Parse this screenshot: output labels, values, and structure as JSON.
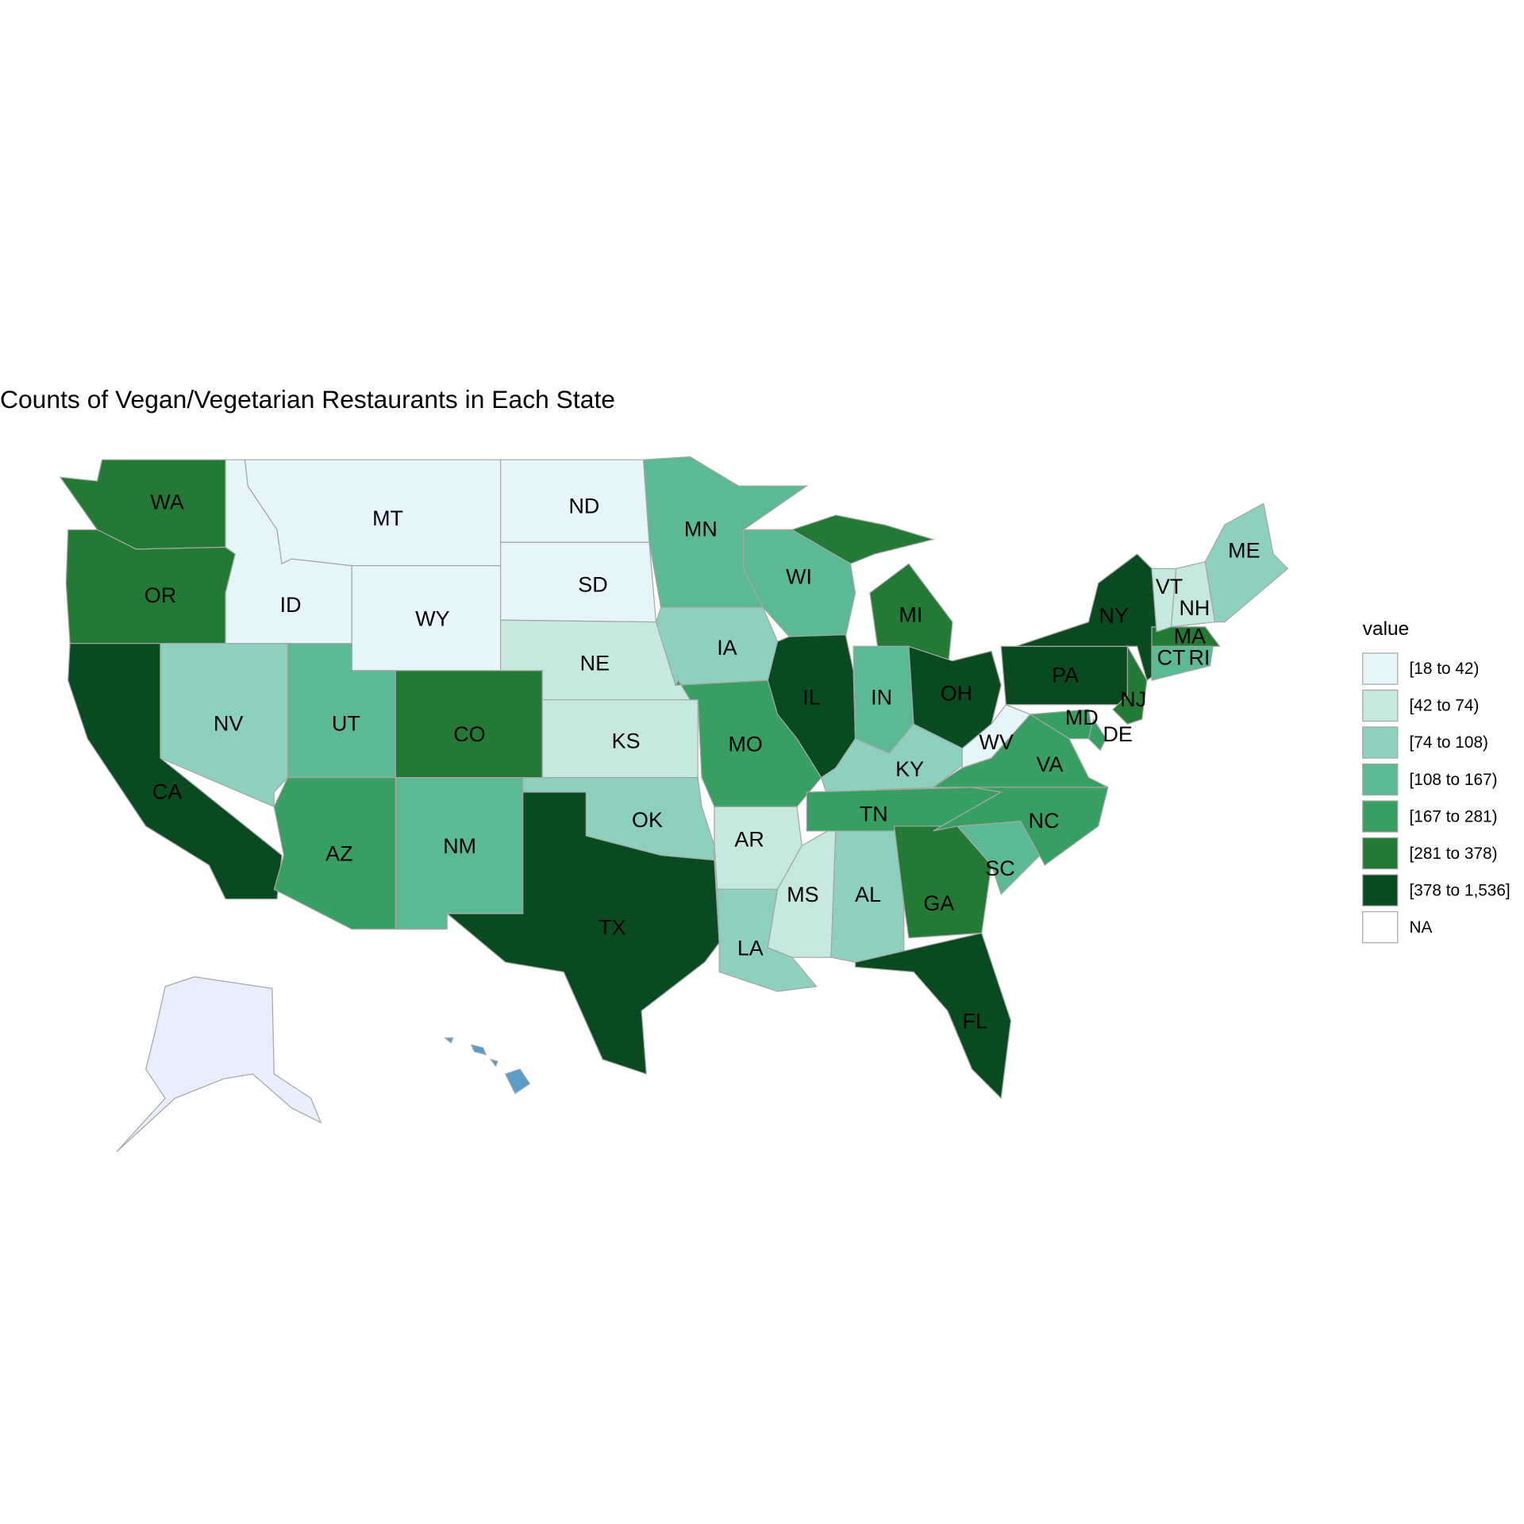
{
  "map": {
    "title": "Counts of Vegan/Vegetarian Restaurants in Each State",
    "legend": {
      "title": "value",
      "items": [
        {
          "label": "[18 to 42)",
          "color": "#e5f5f9"
        },
        {
          "label": "[42 to 74)",
          "color": "#c5e8df"
        },
        {
          "label": "[74 to 108)",
          "color": "#8dd0bd"
        },
        {
          "label": "[108 to 167)",
          "color": "#5bb994"
        },
        {
          "label": "[167 to 281)",
          "color": "#389f62"
        },
        {
          "label": "[281 to 378)",
          "color": "#237a35"
        },
        {
          "label": "[378 to 1,536]",
          "color": "#0a4a20"
        },
        {
          "label": "NA",
          "color": "#ffffff"
        }
      ]
    },
    "regions": [
      {
        "label": "WA",
        "color": "#237a35"
      },
      {
        "label": "OR",
        "color": "#237a35"
      },
      {
        "label": "CA",
        "color": "#0a4a20"
      },
      {
        "label": "ID",
        "color": "#e5f5f9"
      },
      {
        "label": "MT",
        "color": "#e5f5f9"
      },
      {
        "label": "WY",
        "color": "#e5f5f9"
      },
      {
        "label": "NV",
        "color": "#8dd0bd"
      },
      {
        "label": "UT",
        "color": "#5bb994"
      },
      {
        "label": "CO",
        "color": "#237a35"
      },
      {
        "label": "AZ",
        "color": "#389f62"
      },
      {
        "label": "NM",
        "color": "#5bb994"
      },
      {
        "label": "ND",
        "color": "#e5f5f9"
      },
      {
        "label": "SD",
        "color": "#e5f5f9"
      },
      {
        "label": "NE",
        "color": "#c5e8df"
      },
      {
        "label": "KS",
        "color": "#c5e8df"
      },
      {
        "label": "OK",
        "color": "#8dd0bd"
      },
      {
        "label": "TX",
        "color": "#0a4a20"
      },
      {
        "label": "MN",
        "color": "#5bb994"
      },
      {
        "label": "IA",
        "color": "#8dd0bd"
      },
      {
        "label": "MO",
        "color": "#389f62"
      },
      {
        "label": "AR",
        "color": "#c5e8df"
      },
      {
        "label": "LA",
        "color": "#8dd0bd"
      },
      {
        "label": "MS",
        "color": "#c5e8df"
      },
      {
        "label": "AL",
        "color": "#8dd0bd"
      },
      {
        "label": "WI",
        "color": "#5bb994"
      },
      {
        "label": "IL",
        "color": "#0a4a20"
      },
      {
        "label": "MI",
        "color": "#237a35"
      },
      {
        "label": "IN",
        "color": "#5bb994"
      },
      {
        "label": "OH",
        "color": "#0a4a20"
      },
      {
        "label": "KY",
        "color": "#8dd0bd"
      },
      {
        "label": "TN",
        "color": "#389f62"
      },
      {
        "label": "GA",
        "color": "#237a35"
      },
      {
        "label": "FL",
        "color": "#0a4a20"
      },
      {
        "label": "SC",
        "color": "#5bb994"
      },
      {
        "label": "NC",
        "color": "#389f62"
      },
      {
        "label": "VA",
        "color": "#389f62"
      },
      {
        "label": "WV",
        "color": "#e5f5f9"
      },
      {
        "label": "MD",
        "color": "#389f62"
      },
      {
        "label": "DE",
        "color": "#389f62"
      },
      {
        "label": "PA",
        "color": "#0a4a20"
      },
      {
        "label": "NY",
        "color": "#0a4a20"
      },
      {
        "label": "NJ",
        "color": "#237a35"
      },
      {
        "label": "CT",
        "color": "#5bb994"
      },
      {
        "label": "RI",
        "color": "#5bb994"
      },
      {
        "label": "MA",
        "color": "#237a35"
      },
      {
        "label": "VT",
        "color": "#c5e8df"
      },
      {
        "label": "NH",
        "color": "#c5e8df"
      },
      {
        "label": "ME",
        "color": "#8dd0bd"
      }
    ],
    "unlabeled_regions": [
      {
        "color": "#e8eefc"
      },
      {
        "color": "#5b9dc9"
      }
    ]
  }
}
